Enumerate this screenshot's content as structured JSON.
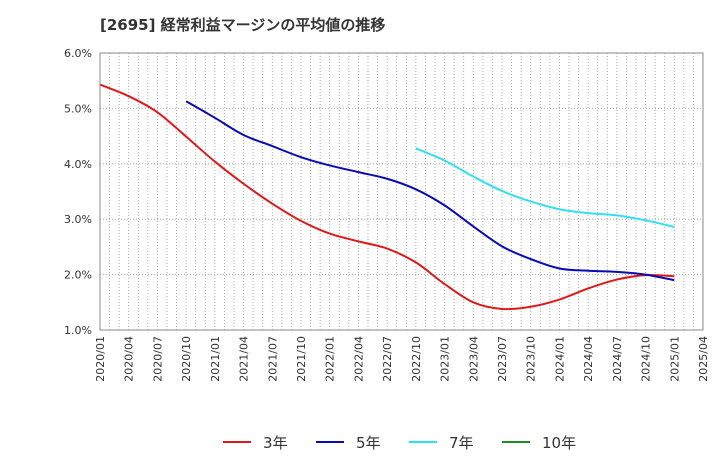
{
  "chart_data": {
    "type": "line",
    "title": "[2695]  経常利益マージンの平均値の推移",
    "xlabel": "",
    "ylabel": "",
    "categories": [
      "2020/01",
      "2020/04",
      "2020/07",
      "2020/10",
      "2021/01",
      "2021/04",
      "2021/07",
      "2021/10",
      "2022/01",
      "2022/04",
      "2022/07",
      "2022/10",
      "2023/01",
      "2023/04",
      "2023/07",
      "2023/10",
      "2024/01",
      "2024/04",
      "2024/07",
      "2024/10",
      "2025/01",
      "2025/04"
    ],
    "ylim": [
      1.0,
      6.0
    ],
    "yticks": [
      "1.0%",
      "2.0%",
      "3.0%",
      "4.0%",
      "5.0%",
      "6.0%"
    ],
    "grid": true,
    "legend_position": "bottom",
    "series": [
      {
        "name": "3年",
        "color": "#dd1a1a",
        "values": [
          5.43,
          5.22,
          4.93,
          4.49,
          4.04,
          3.64,
          3.28,
          2.97,
          2.74,
          2.6,
          2.47,
          2.22,
          1.83,
          1.5,
          1.38,
          1.42,
          1.55,
          1.75,
          1.91,
          1.99,
          1.97,
          null
        ]
      },
      {
        "name": "5年",
        "color": "#0a0ab4",
        "values": [
          null,
          null,
          null,
          5.13,
          4.83,
          4.52,
          4.32,
          4.12,
          3.97,
          3.85,
          3.73,
          3.54,
          3.25,
          2.87,
          2.51,
          2.28,
          2.11,
          2.07,
          2.05,
          2.0,
          1.9,
          null
        ]
      },
      {
        "name": "7年",
        "color": "#33e0f0",
        "values": [
          null,
          null,
          null,
          null,
          null,
          null,
          null,
          null,
          null,
          null,
          null,
          4.28,
          4.06,
          3.77,
          3.51,
          3.32,
          3.18,
          3.11,
          3.07,
          2.98,
          2.86,
          null
        ]
      },
      {
        "name": "10年",
        "color": "#228b22",
        "values": [
          null,
          null,
          null,
          null,
          null,
          null,
          null,
          null,
          null,
          null,
          null,
          null,
          null,
          null,
          null,
          null,
          null,
          null,
          null,
          null,
          null,
          null
        ]
      }
    ]
  }
}
